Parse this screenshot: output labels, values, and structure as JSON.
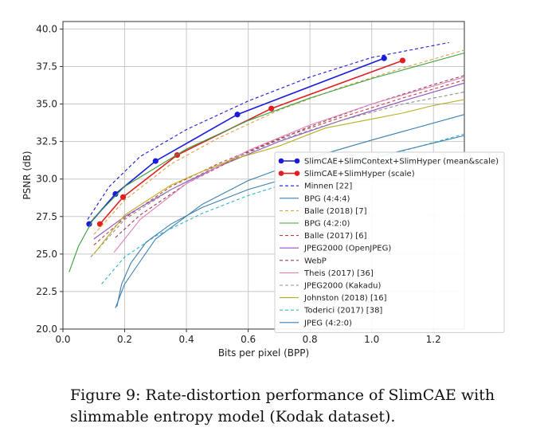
{
  "caption": "Figure 9:  Rate-distortion performance of SlimCAE with slimmable entropy model (Kodak dataset).",
  "chart_data": {
    "type": "line",
    "xlabel": "Bits per pixel (BPP)",
    "ylabel": "PSNR (dB)",
    "xlim": [
      0.0,
      1.3
    ],
    "ylim": [
      20.0,
      40.5
    ],
    "xticks": [
      "0.0",
      "0.2",
      "0.4",
      "0.6",
      "0.8",
      "1.0",
      "1.2"
    ],
    "yticks": [
      "20.0",
      "22.5",
      "25.0",
      "27.5",
      "30.0",
      "32.5",
      "35.0",
      "37.5",
      "40.0"
    ],
    "grid": true,
    "legend_position": "lower-right",
    "series": [
      {
        "name": "SlimCAE+SlimContext+SlimHyper (mean&scale)",
        "color": "#1a1adb",
        "style": "solid",
        "markers": true,
        "x": [
          0.085,
          0.17,
          0.3,
          0.565,
          1.04
        ],
        "y": [
          27.0,
          29.0,
          31.2,
          34.3,
          38.05
        ]
      },
      {
        "name": "SlimCAE+SlimHyper (scale)",
        "color": "#e02020",
        "style": "solid",
        "markers": true,
        "x": [
          0.12,
          0.195,
          0.37,
          0.675,
          1.1
        ],
        "y": [
          27.0,
          28.8,
          31.6,
          34.7,
          37.9
        ]
      },
      {
        "name": "Minnen [22]",
        "color": "#1a1adb",
        "style": "dashed",
        "markers": false,
        "x": [
          0.08,
          0.15,
          0.25,
          0.4,
          0.6,
          0.8,
          1.0,
          1.25
        ],
        "y": [
          27.3,
          29.5,
          31.5,
          33.3,
          35.2,
          36.8,
          38.1,
          39.1
        ]
      },
      {
        "name": "BPG (4:4:4)",
        "color": "#3b7fb0",
        "style": "solid",
        "markers": false,
        "x": [
          0.17,
          0.2,
          0.3,
          0.45,
          0.6,
          0.8,
          1.0,
          1.3
        ],
        "y": [
          21.4,
          23.0,
          26.0,
          28.3,
          29.9,
          31.4,
          32.6,
          34.3
        ]
      },
      {
        "name": "Balle (2018) [7]",
        "color": "#e0a040",
        "style": "dashed",
        "markers": false,
        "x": [
          0.1,
          0.2,
          0.35,
          0.5,
          0.7,
          0.9,
          1.1,
          1.3
        ],
        "y": [
          26.3,
          28.6,
          31.0,
          32.7,
          34.6,
          36.1,
          37.4,
          38.6
        ]
      },
      {
        "name": "BPG (4:2:0)",
        "color": "#3aa040",
        "style": "solid",
        "markers": false,
        "x": [
          0.02,
          0.05,
          0.1,
          0.2,
          0.4,
          0.6,
          0.8,
          1.0,
          1.3
        ],
        "y": [
          23.8,
          25.5,
          27.4,
          29.5,
          32.0,
          33.9,
          35.4,
          36.7,
          38.4
        ]
      },
      {
        "name": "Balle (2017) [6]",
        "color": "#c04040",
        "style": "dashed",
        "markers": false,
        "x": [
          0.1,
          0.2,
          0.35,
          0.5,
          0.7,
          0.9,
          1.1,
          1.3
        ],
        "y": [
          25.6,
          27.4,
          29.5,
          31.0,
          32.7,
          34.1,
          35.4,
          36.6
        ]
      },
      {
        "name": "JPEG2000 (OpenJPEG)",
        "color": "#9050c0",
        "style": "solid",
        "markers": false,
        "x": [
          0.1,
          0.2,
          0.35,
          0.5,
          0.7,
          0.9,
          1.1,
          1.3
        ],
        "y": [
          26.0,
          27.5,
          29.3,
          30.8,
          32.5,
          33.9,
          35.2,
          36.4
        ]
      },
      {
        "name": "WebP",
        "color": "#9a4050",
        "style": "dashed",
        "markers": false,
        "x": [
          0.17,
          0.25,
          0.4,
          0.6,
          0.8,
          1.0,
          1.2,
          1.3
        ],
        "y": [
          26.1,
          27.6,
          29.7,
          31.8,
          33.5,
          35.0,
          36.3,
          36.9
        ]
      },
      {
        "name": "Theis (2017) [36]",
        "color": "#e080c0",
        "style": "solid",
        "markers": false,
        "x": [
          0.165,
          0.25,
          0.4,
          0.6,
          0.8,
          1.0,
          1.3
        ],
        "y": [
          25.1,
          27.3,
          29.7,
          31.9,
          33.6,
          35.0,
          36.8
        ]
      },
      {
        "name": "JPEG2000 (Kakadu)",
        "color": "#909090",
        "style": "dashed",
        "markers": false,
        "x": [
          0.09,
          0.2,
          0.35,
          0.5,
          0.7,
          0.9,
          1.1,
          1.3
        ],
        "y": [
          24.8,
          27.3,
          29.3,
          30.9,
          32.6,
          33.9,
          35.0,
          35.8
        ]
      },
      {
        "name": "Johnston (2018) [16]",
        "color": "#b8b020",
        "style": "solid",
        "markers": false,
        "x": [
          0.1,
          0.2,
          0.35,
          0.45,
          0.55,
          0.7,
          0.85,
          1.0,
          1.1,
          1.2,
          1.3
        ],
        "y": [
          25.0,
          27.6,
          29.6,
          30.5,
          31.3,
          32.2,
          33.4,
          34.0,
          34.4,
          34.9,
          35.3
        ]
      },
      {
        "name": "Toderici (2017) [38]",
        "color": "#30b8c8",
        "style": "dashed",
        "markers": false,
        "x": [
          0.125,
          0.2,
          0.3,
          0.45,
          0.6,
          0.8,
          1.0,
          1.3
        ],
        "y": [
          23.0,
          24.8,
          26.2,
          27.7,
          28.9,
          30.2,
          31.3,
          33.0
        ]
      },
      {
        "name": "JPEG (4:2:0)",
        "color": "#3b7fb0",
        "style": "solid",
        "markers": false,
        "x": [
          0.175,
          0.19,
          0.22,
          0.27,
          0.35,
          0.45,
          0.6,
          0.8,
          1.0,
          1.3
        ],
        "y": [
          21.5,
          23.0,
          24.4,
          25.8,
          27.0,
          28.1,
          29.3,
          30.5,
          31.4,
          32.9
        ]
      }
    ]
  }
}
